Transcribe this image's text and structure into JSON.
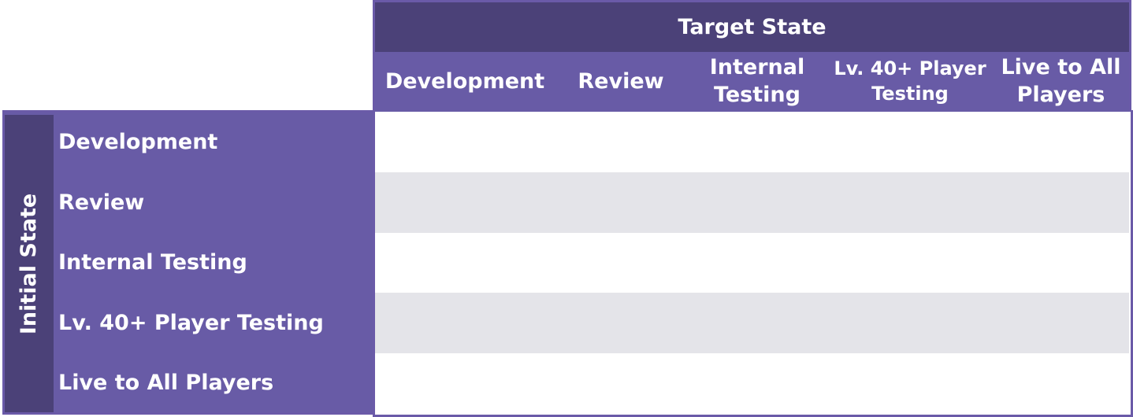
{
  "target_state": {
    "title": "Target State",
    "columns": [
      {
        "label": "Development"
      },
      {
        "label": "Review"
      },
      {
        "label": "Internal\nTesting"
      },
      {
        "label": "Lv. 40+ Player\nTesting"
      },
      {
        "label": "Live to All\nPlayers"
      }
    ]
  },
  "initial_state": {
    "title": "Initial State",
    "rows": [
      {
        "label": "Development"
      },
      {
        "label": "Review"
      },
      {
        "label": "Internal Testing"
      },
      {
        "label": "Lv. 40+ Player Testing"
      },
      {
        "label": "Live to All Players"
      }
    ]
  },
  "colors": {
    "dark_purple": "#4b4178",
    "purple": "#685ba6",
    "row_shade": "#e4e4e9",
    "white": "#ffffff"
  }
}
